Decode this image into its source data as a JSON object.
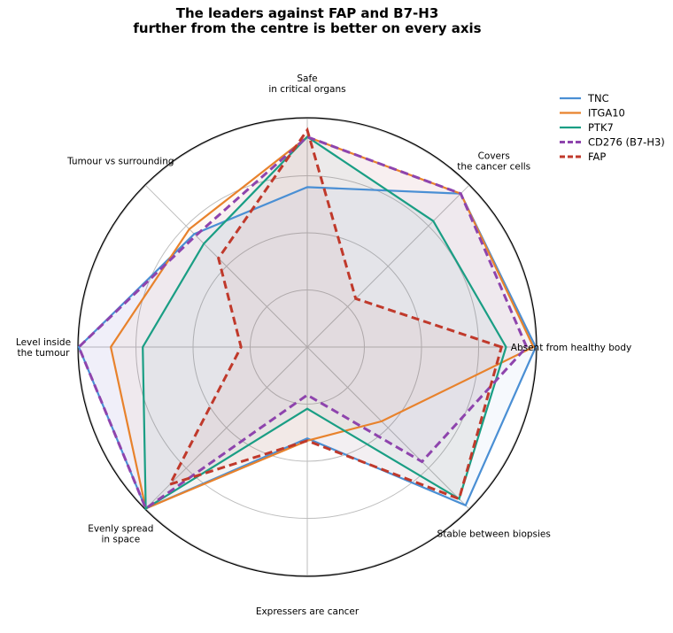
{
  "chart_data": {
    "type": "radar",
    "title_lines": [
      "The leaders against FAP and B7-H3",
      "further from the centre is better on every axis"
    ],
    "axes": [
      [
        "Absent from healthy body"
      ],
      [
        "Covers",
        "the cancer cells"
      ],
      [
        "Safe",
        "in critical organs"
      ],
      [
        "Tumour vs surrounding"
      ],
      [
        "Level inside",
        "the tumour"
      ],
      [
        "Evenly spread",
        "in space"
      ],
      [
        "Expressers are cancer"
      ],
      [
        "Stable between biopsies"
      ]
    ],
    "rmax": 1.0,
    "rings": [
      0.25,
      0.5,
      0.75,
      1.0
    ],
    "grid": true,
    "legend_position": "top-right",
    "series": [
      {
        "name": "TNC",
        "color": "#4a8fd4",
        "dashed": false,
        "fill_alpha": 0.05,
        "values": [
          1.0,
          0.95,
          0.7,
          0.7,
          1.0,
          1.0,
          0.4,
          0.98
        ]
      },
      {
        "name": "ITGA10",
        "color": "#e8822c",
        "dashed": false,
        "fill_alpha": 0.05,
        "values": [
          0.99,
          0.95,
          0.92,
          0.73,
          0.86,
          1.0,
          0.41,
          0.46
        ]
      },
      {
        "name": "PTK7",
        "color": "#1a9e84",
        "dashed": false,
        "fill_alpha": 0.05,
        "values": [
          0.87,
          0.78,
          0.92,
          0.64,
          0.72,
          1.0,
          0.27,
          0.94
        ]
      },
      {
        "name": "CD276 (B7-H3)",
        "color": "#8e44ad",
        "dashed": true,
        "fill_alpha": 0.05,
        "values": [
          0.96,
          0.95,
          0.92,
          0.69,
          1.0,
          1.0,
          0.21,
          0.71
        ]
      },
      {
        "name": "FAP",
        "color": "#c0392b",
        "dashed": true,
        "fill_alpha": 0.05,
        "values": [
          0.85,
          0.3,
          0.95,
          0.55,
          0.29,
          0.85,
          0.41,
          0.94
        ]
      }
    ]
  }
}
